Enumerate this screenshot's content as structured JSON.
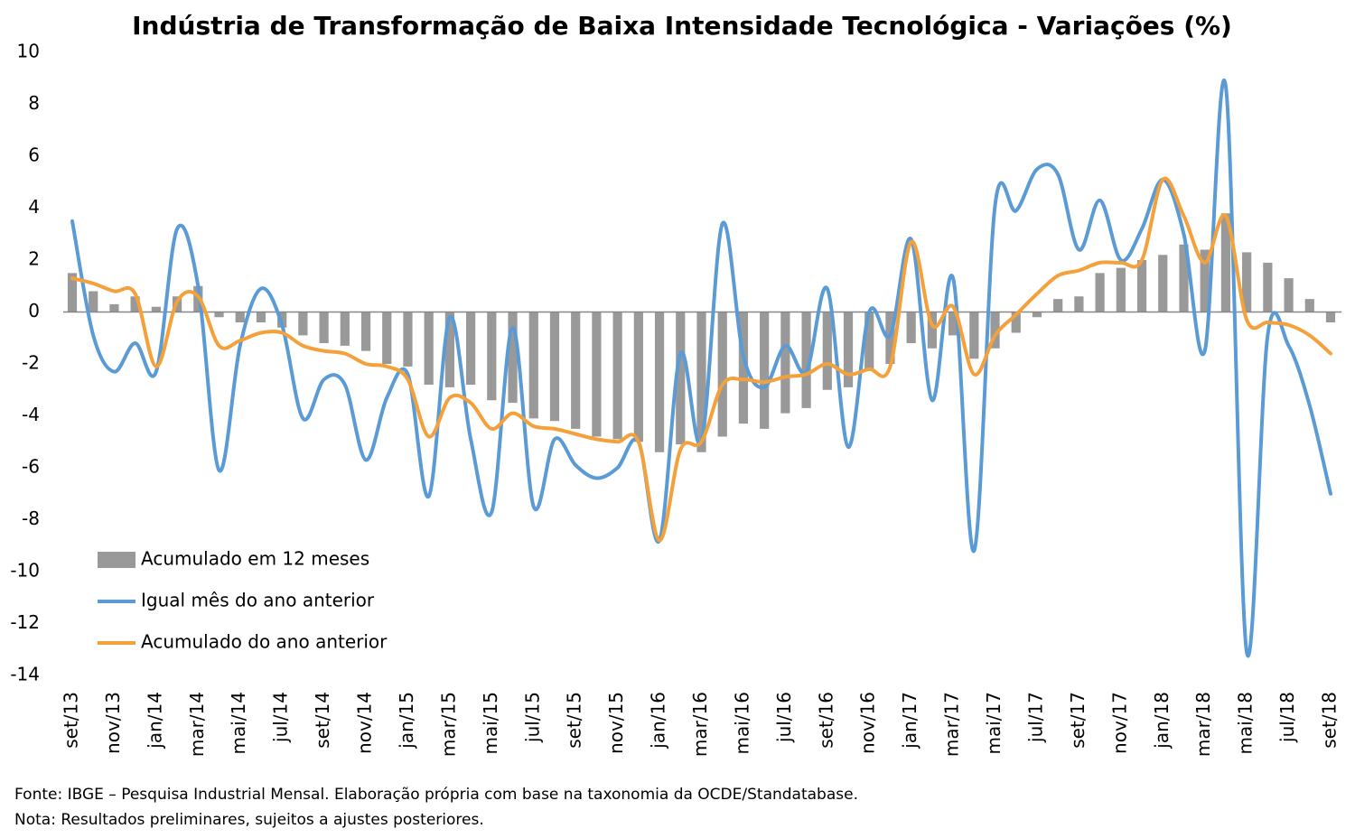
{
  "chart_data": {
    "type": "bar-line",
    "title": "Indústria de Transformação de Baixa Intensidade Tecnológica - Variações (%)",
    "categories": [
      "set/13",
      null,
      "nov/13",
      null,
      "jan/14",
      null,
      "mar/14",
      null,
      "mai/14",
      null,
      "jul/14",
      null,
      "set/14",
      null,
      "nov/14",
      null,
      "jan/15",
      null,
      "mar/15",
      null,
      "mai/15",
      null,
      "jul/15",
      null,
      "set/15",
      null,
      "nov/15",
      null,
      "jan/16",
      null,
      "mar/16",
      null,
      "mai/16",
      null,
      "jul/16",
      null,
      "set/16",
      null,
      "nov/16",
      null,
      "jan/17",
      null,
      "mar/17",
      null,
      "mai/17",
      null,
      "jul/17",
      null,
      "set/17",
      null,
      "nov/17",
      null,
      "jan/18",
      null,
      "mar/18",
      null,
      "mai/18",
      null,
      "jul/18",
      null,
      "set/18"
    ],
    "series": [
      {
        "name": "Acumulado em 12 meses",
        "kind": "bar",
        "color": "#999999",
        "values": [
          1.5,
          0.8,
          0.3,
          0.6,
          0.2,
          0.6,
          1.0,
          -0.2,
          -0.4,
          -0.4,
          -0.6,
          -0.9,
          -1.2,
          -1.3,
          -1.5,
          -2.0,
          -2.1,
          -2.8,
          -2.9,
          -2.8,
          -3.4,
          -3.5,
          -4.1,
          -4.2,
          -4.5,
          -4.8,
          -4.9,
          -5.0,
          -5.4,
          -5.1,
          -5.4,
          -4.8,
          -4.3,
          -4.5,
          -3.9,
          -3.7,
          -3.0,
          -2.9,
          -2.2,
          -2.0,
          -1.2,
          -1.4,
          -0.9,
          -1.8,
          -1.4,
          -0.8,
          -0.2,
          0.5,
          0.6,
          1.5,
          1.7,
          2.0,
          2.2,
          2.6,
          2.4,
          3.8,
          2.3,
          1.9,
          1.3,
          0.5,
          -0.4
        ]
      },
      {
        "name": "Igual mês do ano anterior",
        "kind": "line",
        "color": "#5b9bd5",
        "values": [
          3.5,
          -0.9,
          -2.3,
          -1.2,
          -2.3,
          3.2,
          1.0,
          -6.1,
          -1.3,
          0.9,
          -0.5,
          -4.1,
          -2.6,
          -2.8,
          -5.7,
          -3.3,
          -2.4,
          -7.1,
          -0.2,
          -4.9,
          -7.7,
          -0.6,
          -7.5,
          -4.9,
          -5.9,
          -6.4,
          -6.0,
          -5.0,
          -8.8,
          -1.6,
          -5.0,
          3.4,
          -1.7,
          -2.9,
          -1.3,
          -2.3,
          0.9,
          -5.2,
          0.0,
          -0.9,
          2.8,
          -3.4,
          1.3,
          -9.2,
          4.1,
          3.9,
          5.5,
          5.3,
          2.4,
          4.3,
          2.0,
          3.2,
          5.1,
          3.0,
          -1.5,
          8.7,
          -13.1,
          -0.9,
          -1.3,
          -3.6,
          -7.0
        ]
      },
      {
        "name": "Acumulado do ano anterior",
        "kind": "line",
        "color": "#f4a13c",
        "values": [
          1.3,
          1.1,
          0.8,
          0.7,
          -2.1,
          0.4,
          0.6,
          -1.3,
          -1.1,
          -0.8,
          -0.8,
          -1.3,
          -1.5,
          -1.6,
          -2.0,
          -2.1,
          -2.6,
          -4.8,
          -3.3,
          -3.5,
          -4.5,
          -3.9,
          -4.4,
          -4.5,
          -4.7,
          -4.9,
          -5.0,
          -5.0,
          -8.8,
          -5.3,
          -5.0,
          -2.8,
          -2.6,
          -2.7,
          -2.5,
          -2.4,
          -2.0,
          -2.4,
          -2.2,
          -2.1,
          2.7,
          -0.5,
          0.2,
          -2.4,
          -0.9,
          -0.1,
          0.7,
          1.4,
          1.6,
          1.9,
          1.9,
          2.0,
          5.1,
          3.7,
          1.9,
          3.7,
          -0.3,
          -0.4,
          -0.5,
          -0.9,
          -1.6
        ]
      }
    ],
    "ylim": [
      -14,
      10
    ],
    "yticks": [
      -14,
      -12,
      -10,
      -8,
      -6,
      -4,
      -2,
      0,
      2,
      4,
      6,
      8,
      10
    ],
    "grid": false,
    "legend": "lower-left",
    "notes": [
      "Fonte: IBGE – Pesquisa Industrial Mensal. Elaboração própria com base na taxonomia da OCDE/Standatabase.",
      "Nota: Resultados preliminares, sujeitos a ajustes posteriores."
    ]
  }
}
